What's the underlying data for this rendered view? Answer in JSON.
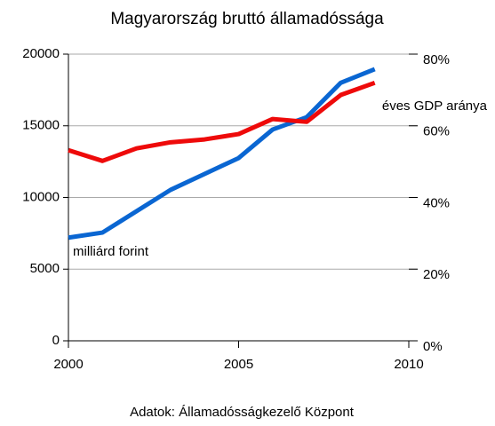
{
  "chart_data": {
    "type": "line",
    "title": "Magyarország bruttó államadóssága",
    "source": "Adatok: Államadósságkezelő Központ",
    "x": [
      2000,
      2001,
      2002,
      2003,
      2004,
      2005,
      2006,
      2007,
      2008,
      2009
    ],
    "series": [
      {
        "name": "milliárd forint",
        "color": "#0a66d2",
        "values": [
          7200,
          7550,
          9040,
          10530,
          11640,
          12750,
          14740,
          15600,
          18000,
          18950
        ]
      },
      {
        "name": "éves GDP aránya",
        "color": "#ee0a0a",
        "axis": "y2",
        "values": [
          53.2,
          50.2,
          53.7,
          55.4,
          56.2,
          57.7,
          61.9,
          61.1,
          68.6,
          72.0
        ]
      }
    ],
    "xlim": [
      2000,
      2010
    ],
    "xticks": [
      2000,
      2005,
      2010
    ],
    "ylim": [
      0,
      20000
    ],
    "yticks": [
      0,
      5000,
      10000,
      15000,
      20000
    ],
    "y2lim": [
      0,
      80
    ],
    "y2ticks": [
      {
        "value": 0,
        "label": "0%"
      },
      {
        "value": 20,
        "label": "20%"
      },
      {
        "value": 40,
        "label": "40%"
      },
      {
        "value": 60,
        "label": "60%"
      },
      {
        "value": 80,
        "label": "80%"
      }
    ],
    "grid": true
  }
}
